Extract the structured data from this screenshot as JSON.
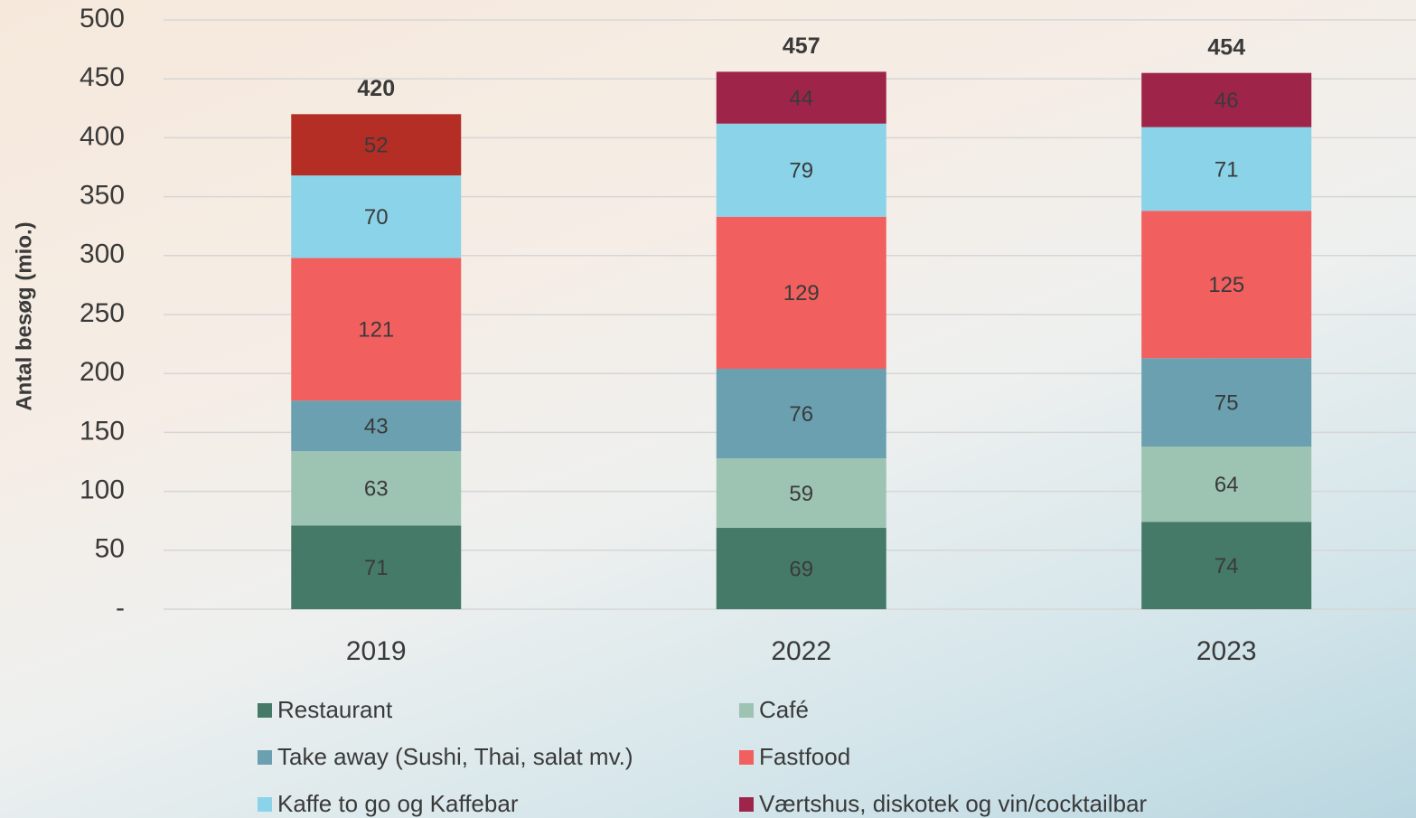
{
  "chart_data": {
    "type": "stacked_bar",
    "y_label": "Antal besøg (mio.)",
    "categories": [
      "2019",
      "2022",
      "2023"
    ],
    "series": [
      {
        "name": "Restaurant",
        "color": "#467a68",
        "values": [
          71,
          69,
          74
        ]
      },
      {
        "name": "Café",
        "color": "#9dc3b2",
        "values": [
          63,
          59,
          64
        ]
      },
      {
        "name": "Take away (Sushi, Thai, salat mv.)",
        "color": "#6aa0b0",
        "values": [
          43,
          76,
          75
        ]
      },
      {
        "name": "Fastfood",
        "color": "#f25f5f",
        "values": [
          121,
          129,
          125
        ]
      },
      {
        "name": "Kaffe to go og Kaffebar",
        "color": "#8ad3e8",
        "values": [
          70,
          79,
          71
        ]
      },
      {
        "name": "Værtshus, diskotek og vin/cocktailbar",
        "color": "#9e2549",
        "colors": [
          "#b52e25",
          "#9e2549",
          "#9e2549"
        ],
        "values": [
          52,
          44,
          46
        ]
      }
    ],
    "totals": [
      420,
      457,
      454
    ],
    "ylim": [
      0,
      500
    ],
    "yticks": [
      {
        "value": 0,
        "label": "-"
      },
      50,
      100,
      150,
      200,
      250,
      300,
      350,
      400,
      450,
      500
    ],
    "grid": true,
    "legend": "bottom"
  }
}
